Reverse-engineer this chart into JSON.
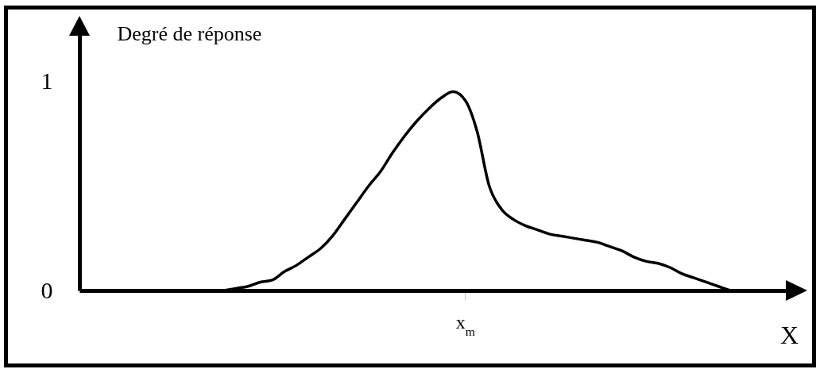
{
  "chart_data": {
    "type": "line",
    "xlabel": "X",
    "ylabel": "Degré de réponse",
    "categories": [
      null,
      null,
      null,
      null,
      null,
      null,
      null,
      null,
      null,
      null,
      null,
      null,
      null,
      null,
      null,
      null,
      null,
      null,
      null,
      null,
      null,
      null,
      null,
      null,
      null,
      null,
      null,
      null,
      null,
      null,
      null,
      null,
      "x$_{m}$",
      null,
      null,
      null,
      null,
      null,
      null,
      null,
      null,
      null,
      null,
      null,
      null,
      null,
      null,
      null,
      null,
      null,
      null,
      null,
      null,
      null,
      null,
      null,
      null,
      null,
      null,
      null,
      null
    ],
    "values": [
      null,
      null,
      null,
      null,
      null,
      null,
      null,
      null,
      null,
      null,
      null,
      null,
      0,
      0.01,
      0.02,
      0.04,
      0.05,
      0.09,
      0.12,
      0.16,
      0.2,
      0.26,
      0.34,
      0.42,
      0.5,
      0.57,
      0.66,
      0.74,
      0.81,
      0.87,
      0.92,
      0.95,
      0.91,
      0.76,
      0.5,
      0.39,
      0.34,
      0.31,
      0.29,
      0.27,
      0.26,
      0.25,
      0.24,
      0.23,
      0.21,
      0.19,
      0.16,
      0.14,
      0.13,
      0.11,
      0.08,
      0.06,
      0.04,
      0.02,
      0,
      null,
      null,
      null,
      null,
      null,
      null
    ],
    "color": "#000000",
    "line_style": "solid",
    "ylim": [
      0,
      1.29
    ],
    "yticks": [
      0,
      1
    ]
  }
}
